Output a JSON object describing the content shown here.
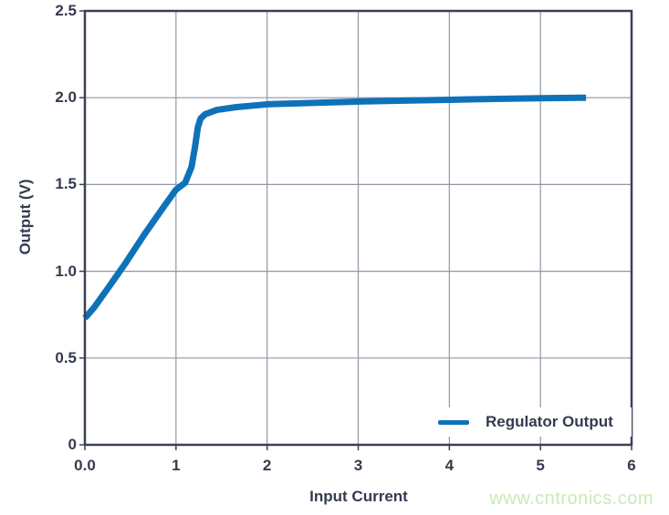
{
  "chart_data": {
    "type": "line",
    "title": "",
    "xlabel": "Input Current",
    "ylabel": "Output (V)",
    "xlim": [
      0,
      6
    ],
    "ylim": [
      0,
      2.5
    ],
    "grid": true,
    "legend_position": "inside-bottom-right",
    "x_ticks": {
      "values": [
        0,
        1,
        2,
        3,
        4,
        5,
        6
      ],
      "labels": [
        "0.0",
        "1",
        "2",
        "3",
        "4",
        "5",
        "6"
      ]
    },
    "y_ticks": {
      "values": [
        0,
        0.5,
        1.0,
        1.5,
        2.0,
        2.5
      ],
      "labels": [
        "0",
        "0.5",
        "1.0",
        "1.5",
        "2.0",
        "2.5"
      ]
    },
    "series": [
      {
        "name": "Regulator Output",
        "color": "#0e72b9",
        "x": [
          0,
          0.1,
          0.25,
          0.45,
          0.65,
          0.85,
          1.0,
          1.1,
          1.17,
          1.21,
          1.24,
          1.27,
          1.32,
          1.45,
          1.65,
          2.0,
          2.5,
          3.0,
          3.5,
          4.0,
          4.5,
          5.0,
          5.5
        ],
        "y": [
          0.73,
          0.79,
          0.9,
          1.05,
          1.21,
          1.36,
          1.47,
          1.51,
          1.6,
          1.72,
          1.83,
          1.88,
          1.905,
          1.93,
          1.945,
          1.962,
          1.97,
          1.978,
          1.983,
          1.988,
          1.993,
          1.997,
          2.0
        ]
      }
    ]
  },
  "colors": {
    "line": "#0e72b9",
    "axis_text": "#343b4e",
    "plot_border": "#3a4153",
    "gridline": "#9197a6",
    "watermark": "#c9eab8",
    "background": "#ffffff"
  },
  "watermark": {
    "text": "www.cntronics.com"
  }
}
